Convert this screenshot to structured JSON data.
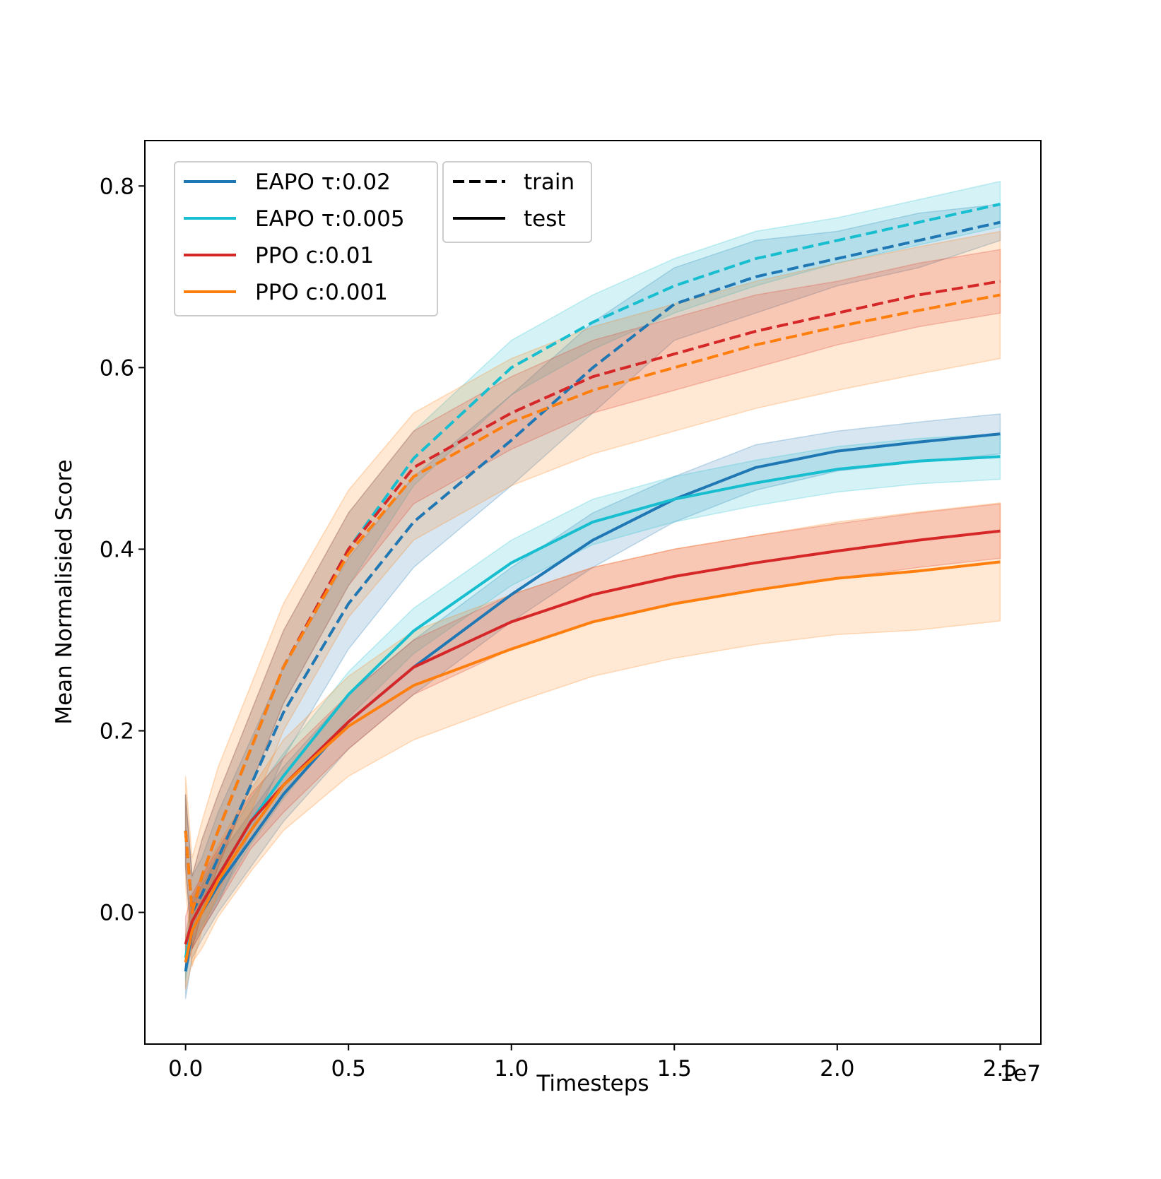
{
  "chart_data": {
    "type": "line",
    "title": "",
    "xlabel": "Timesteps",
    "ylabel": "Mean Normalisied Score",
    "x_offset_label": "1e7",
    "xlim": [
      -0.125,
      2.625
    ],
    "ylim": [
      -0.145,
      0.85
    ],
    "xticks": [
      0.0,
      0.5,
      1.0,
      1.5,
      2.0,
      2.5
    ],
    "xtick_labels": [
      "0.0",
      "0.5",
      "1.0",
      "1.5",
      "2.0",
      "2.5"
    ],
    "yticks": [
      0.0,
      0.2,
      0.4,
      0.6,
      0.8
    ],
    "ytick_labels": [
      "0.0",
      "0.2",
      "0.4",
      "0.6",
      "0.8"
    ],
    "grid": false,
    "legend_position": "top-left",
    "x": [
      0.0,
      0.02,
      0.05,
      0.1,
      0.2,
      0.3,
      0.5,
      0.7,
      1.0,
      1.25,
      1.5,
      1.75,
      2.0,
      2.25,
      2.5
    ],
    "series": [
      {
        "name": "EAPO τ:0.02",
        "color": "#1f77b4",
        "train": [
          0.09,
          0.0,
          0.02,
          0.06,
          0.14,
          0.22,
          0.34,
          0.43,
          0.52,
          0.6,
          0.67,
          0.7,
          0.72,
          0.74,
          0.76
        ],
        "train_band": [
          0.04,
          0.04,
          0.04,
          0.05,
          0.05,
          0.05,
          0.05,
          0.05,
          0.05,
          0.05,
          0.04,
          0.04,
          0.03,
          0.03,
          0.02
        ],
        "test": [
          -0.065,
          -0.02,
          0.0,
          0.03,
          0.08,
          0.13,
          0.21,
          0.27,
          0.35,
          0.41,
          0.455,
          0.49,
          0.508,
          0.518,
          0.527
        ],
        "test_band": [
          0.03,
          0.03,
          0.03,
          0.03,
          0.03,
          0.03,
          0.03,
          0.03,
          0.03,
          0.03,
          0.025,
          0.025,
          0.022,
          0.022,
          0.022
        ]
      },
      {
        "name": "EAPO τ:0.005",
        "color": "#17becf",
        "train": [
          0.09,
          0.0,
          0.04,
          0.09,
          0.18,
          0.27,
          0.4,
          0.5,
          0.6,
          0.65,
          0.69,
          0.72,
          0.74,
          0.76,
          0.78
        ],
        "train_band": [
          0.04,
          0.04,
          0.04,
          0.04,
          0.04,
          0.04,
          0.04,
          0.03,
          0.03,
          0.03,
          0.03,
          0.03,
          0.025,
          0.025,
          0.025
        ],
        "test": [
          -0.05,
          -0.01,
          0.01,
          0.04,
          0.1,
          0.15,
          0.24,
          0.31,
          0.385,
          0.43,
          0.455,
          0.473,
          0.488,
          0.497,
          0.502
        ],
        "test_band": [
          0.025,
          0.025,
          0.025,
          0.025,
          0.025,
          0.025,
          0.025,
          0.025,
          0.025,
          0.025,
          0.025,
          0.025,
          0.025,
          0.025,
          0.025
        ]
      },
      {
        "name": "PPO c:0.01",
        "color": "#d62728",
        "train": [
          0.09,
          0.0,
          0.04,
          0.09,
          0.18,
          0.27,
          0.4,
          0.49,
          0.55,
          0.59,
          0.615,
          0.64,
          0.66,
          0.68,
          0.695
        ],
        "train_band": [
          0.04,
          0.04,
          0.04,
          0.04,
          0.04,
          0.04,
          0.04,
          0.04,
          0.04,
          0.04,
          0.04,
          0.04,
          0.035,
          0.035,
          0.035
        ],
        "test": [
          -0.035,
          -0.01,
          0.01,
          0.04,
          0.1,
          0.14,
          0.21,
          0.27,
          0.32,
          0.35,
          0.37,
          0.385,
          0.398,
          0.41,
          0.42
        ],
        "test_band": [
          0.03,
          0.03,
          0.03,
          0.03,
          0.03,
          0.03,
          0.03,
          0.03,
          0.03,
          0.03,
          0.03,
          0.03,
          0.03,
          0.03,
          0.03
        ]
      },
      {
        "name": "PPO c:0.001",
        "color": "#ff7f0e",
        "train": [
          0.09,
          0.0,
          0.04,
          0.09,
          0.18,
          0.27,
          0.395,
          0.48,
          0.54,
          0.575,
          0.6,
          0.625,
          0.645,
          0.663,
          0.68
        ],
        "train_band": [
          0.06,
          0.06,
          0.06,
          0.07,
          0.07,
          0.07,
          0.07,
          0.07,
          0.07,
          0.07,
          0.07,
          0.07,
          0.07,
          0.07,
          0.07
        ],
        "test": [
          -0.055,
          -0.02,
          0.0,
          0.035,
          0.09,
          0.14,
          0.205,
          0.25,
          0.29,
          0.32,
          0.34,
          0.355,
          0.368,
          0.376,
          0.386
        ],
        "test_band": [
          0.03,
          0.035,
          0.04,
          0.04,
          0.045,
          0.05,
          0.055,
          0.06,
          0.06,
          0.06,
          0.06,
          0.06,
          0.062,
          0.065,
          0.065
        ]
      }
    ],
    "style_legend": [
      {
        "label": "train",
        "dash": "dashed"
      },
      {
        "label": "test",
        "dash": "solid"
      }
    ]
  }
}
